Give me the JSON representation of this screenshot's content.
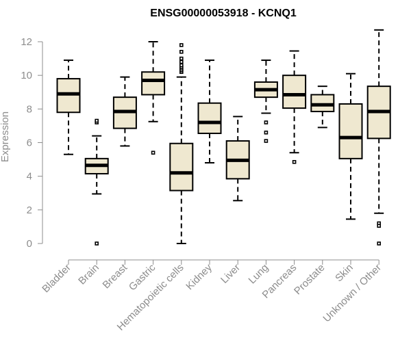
{
  "chart_data": {
    "type": "boxplot",
    "title": "ENSG00000053918 - KCNQ1",
    "ylabel": "Expression",
    "xlabel": "",
    "ylim": [
      0,
      12.5
    ],
    "yticks": [
      0,
      2,
      4,
      6,
      8,
      10,
      12
    ],
    "grid": false,
    "categories": [
      "Bladder",
      "Brain",
      "Breast",
      "Gastric",
      "Hematopoietic cells",
      "Kidney",
      "Liver",
      "Lung",
      "Pancreas",
      "Prostate",
      "Skin",
      "Unknown / Other"
    ],
    "boxes": [
      {
        "min": 5.3,
        "q1": 7.8,
        "median": 8.9,
        "q3": 9.8,
        "max": 10.9,
        "outliers": []
      },
      {
        "min": 2.95,
        "q1": 4.15,
        "median": 4.65,
        "q3": 5.05,
        "max": 6.4,
        "outliers": [
          7.2,
          7.3,
          0.0
        ]
      },
      {
        "min": 5.8,
        "q1": 6.85,
        "median": 7.85,
        "q3": 8.7,
        "max": 9.9,
        "outliers": []
      },
      {
        "min": 7.25,
        "q1": 8.85,
        "median": 9.7,
        "q3": 10.2,
        "max": 12.0,
        "outliers": [
          5.4
        ]
      },
      {
        "min": 0.0,
        "q1": 3.15,
        "median": 4.2,
        "q3": 5.95,
        "max": 9.9,
        "outliers": [
          10.2,
          10.3,
          10.4,
          10.5,
          10.6,
          10.8,
          11.0,
          11.4,
          11.8
        ]
      },
      {
        "min": 4.8,
        "q1": 6.55,
        "median": 7.2,
        "q3": 8.35,
        "max": 10.9,
        "outliers": []
      },
      {
        "min": 2.55,
        "q1": 3.85,
        "median": 4.95,
        "q3": 6.1,
        "max": 7.55,
        "outliers": []
      },
      {
        "min": 7.75,
        "q1": 8.7,
        "median": 9.15,
        "q3": 9.6,
        "max": 10.9,
        "outliers": [
          7.2,
          6.6,
          6.1
        ]
      },
      {
        "min": 5.4,
        "q1": 8.05,
        "median": 8.85,
        "q3": 10.0,
        "max": 11.45,
        "outliers": [
          4.85
        ]
      },
      {
        "min": 6.9,
        "q1": 7.85,
        "median": 8.25,
        "q3": 8.85,
        "max": 9.35,
        "outliers": []
      },
      {
        "min": 1.45,
        "q1": 5.05,
        "median": 6.3,
        "q3": 8.3,
        "max": 10.1,
        "outliers": []
      },
      {
        "min": 1.8,
        "q1": 6.25,
        "median": 7.85,
        "q3": 9.35,
        "max": 12.7,
        "outliers": [
          1.2,
          1.05,
          0.0
        ]
      }
    ],
    "colors": {
      "box_fill": "#efe8d0",
      "box_stroke": "#000000",
      "axis": "#8c8c8c",
      "label": "#8c8c8c"
    }
  }
}
